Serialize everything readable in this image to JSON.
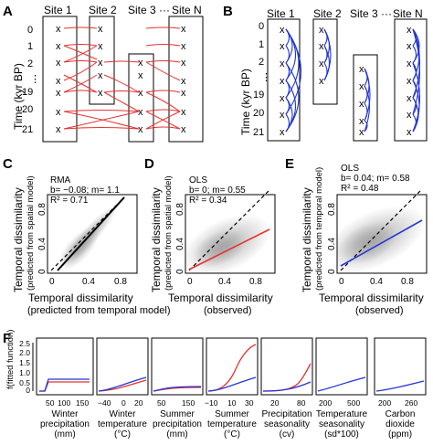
{
  "colors": {
    "red": "#e8302f",
    "blue": "#2236d6",
    "cloud": "#9a9a9a"
  },
  "panel_a": {
    "label": "A",
    "site_labels": [
      "Site 1",
      "Site 2",
      "Site 3 ···",
      "Site N"
    ],
    "ylabel": "Time (kyr BP)",
    "times": [
      "0",
      "1",
      "2",
      "⋮",
      "19",
      "20",
      "21"
    ],
    "marker": "x"
  },
  "panel_b": {
    "label": "B",
    "site_labels": [
      "Site 1",
      "Site 2",
      "Site 3 ···",
      "Site N"
    ],
    "ylabel": "Time (kyr BP)",
    "times": [
      "0",
      "1",
      "2",
      "⋮",
      "19",
      "20",
      "21"
    ],
    "marker": "x"
  },
  "panel_c": {
    "label": "C",
    "method": "RMA",
    "stats_b": "b= −0.08; m= 1.1",
    "stats_r2": "R² = 0.71",
    "ylabel_1": "Temporal dissimilarity",
    "ylabel_2": "(predicted from spatial model)",
    "xlabel_1": "Temporal dissimilarity",
    "xlabel_2": "(predicted from temporal model)"
  },
  "panel_d": {
    "label": "D",
    "method": "OLS",
    "stats_b": "b= 0; m= 0.55",
    "stats_r2": "R² = 0.34",
    "ylabel_1": "Temporal dissimilarity",
    "ylabel_2": "(predicted from spatial model)",
    "xlabel_1": "Temporal dissimilarity",
    "xlabel_2": "(observed)"
  },
  "panel_e": {
    "label": "E",
    "method": "OLS",
    "stats_b": "b= 0.04; m= 0.58",
    "stats_r2": "R² = 0.48",
    "ylabel_1": "Temporal dissimilarity",
    "ylabel_2": "(predicted from temporal model)",
    "xlabel_1": "Temporal dissimilarity",
    "xlabel_2": "(observed)"
  },
  "scatter_ticks": {
    "x": [
      "0",
      "0.4",
      "0.8"
    ],
    "y": [
      "0",
      "0.4",
      "0.8"
    ]
  },
  "panel_f": {
    "label": "F",
    "ylabel": "f(fitted function)",
    "yticks": [
      "0",
      "0.5",
      "1.0",
      "1.5",
      "2.0",
      "2.5"
    ],
    "subplots": [
      {
        "ticks": [
          "50",
          "100",
          "150"
        ],
        "label": [
          "Winter",
          "precipitation",
          "(mm)"
        ]
      },
      {
        "ticks": [
          "−40",
          "0",
          "20"
        ],
        "label": [
          "Winter",
          "temperature",
          "(°C)"
        ]
      },
      {
        "ticks": [
          "50",
          "150"
        ],
        "label": [
          "Summer",
          "precipitation",
          "(mm)"
        ]
      },
      {
        "ticks": [
          "−10",
          "10",
          "30"
        ],
        "label": [
          "Summer",
          "temperature",
          "(°C)"
        ]
      },
      {
        "ticks": [
          "20",
          "80"
        ],
        "label": [
          "Precipitation",
          "seasonality",
          "(cv)"
        ]
      },
      {
        "ticks": [
          "200",
          "500"
        ],
        "label": [
          "Temperature",
          "seasonality",
          "(sd*100)"
        ]
      },
      {
        "ticks": [
          "200",
          "260"
        ],
        "label": [
          "Carbon",
          "dioxide",
          "(ppm)"
        ]
      }
    ]
  }
}
